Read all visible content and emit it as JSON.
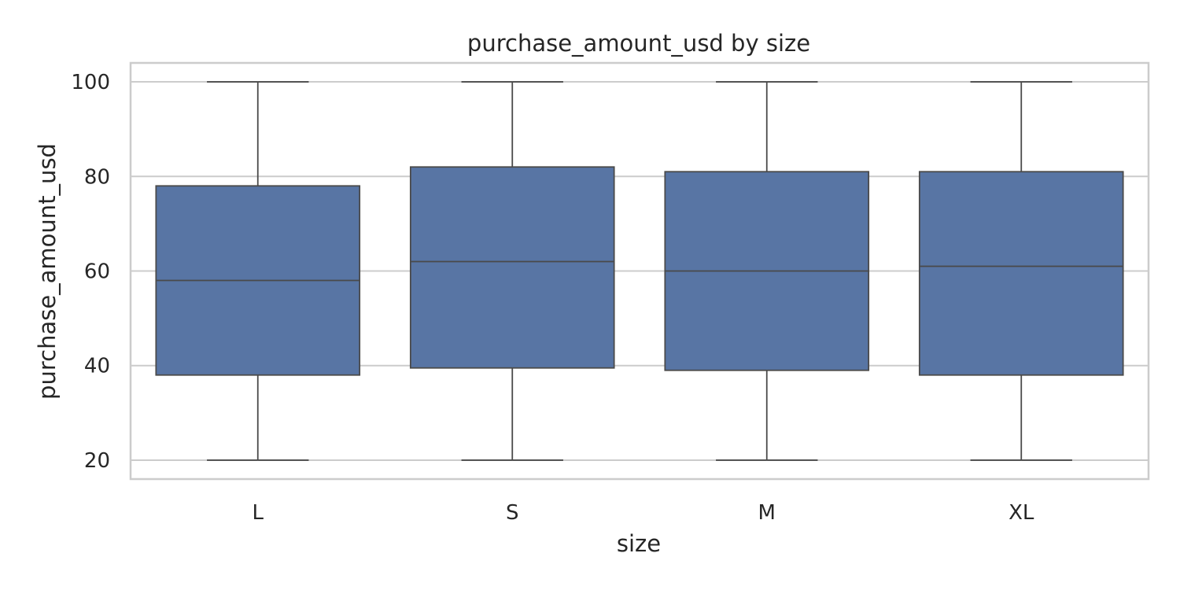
{
  "chart_data": {
    "type": "box",
    "title": "purchase_amount_usd by size",
    "xlabel": "size",
    "ylabel": "purchase_amount_usd",
    "ylim": [
      16,
      104
    ],
    "yticks": [
      20,
      40,
      60,
      80,
      100
    ],
    "grid": "y",
    "categories": [
      "L",
      "S",
      "M",
      "XL"
    ],
    "boxes": [
      {
        "category": "L",
        "min": 20,
        "q1": 38,
        "median": 58,
        "q3": 78,
        "max": 100
      },
      {
        "category": "S",
        "min": 20,
        "q1": 39.5,
        "median": 62,
        "q3": 82,
        "max": 100
      },
      {
        "category": "M",
        "min": 20,
        "q1": 39,
        "median": 60,
        "q3": 81,
        "max": 100
      },
      {
        "category": "XL",
        "min": 20,
        "q1": 38,
        "median": 61,
        "q3": 81,
        "max": 100
      }
    ],
    "colors": {
      "box_fill": "#5875a4",
      "line": "#4a4a4a",
      "grid": "#cccccc",
      "frame": "#cccccc"
    }
  }
}
